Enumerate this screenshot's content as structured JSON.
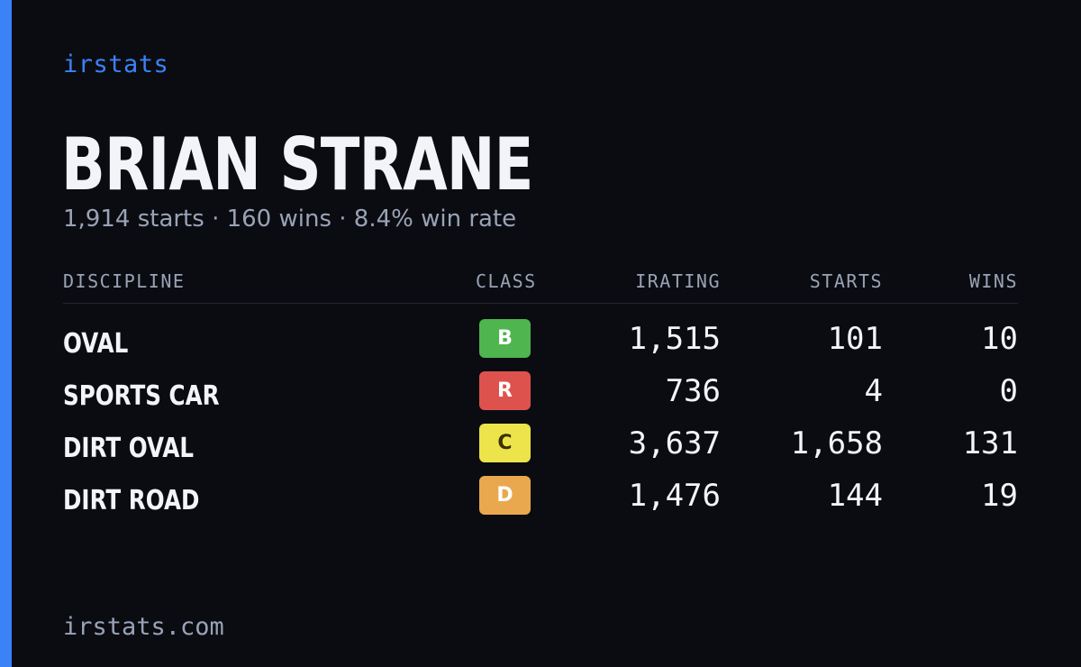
{
  "brand": "irstats",
  "player": {
    "name": "BRIAN STRANE",
    "summary": "1,914 starts · 160 wins · 8.4% win rate"
  },
  "table": {
    "headers": {
      "discipline": "DISCIPLINE",
      "class": "CLASS",
      "irating": "IRATING",
      "starts": "STARTS",
      "wins": "WINS"
    },
    "rows": [
      {
        "discipline": "OVAL",
        "class": "B",
        "class_color": "#4fb54f",
        "class_text_color": "#ffffff",
        "irating": "1,515",
        "starts": "101",
        "wins": "10"
      },
      {
        "discipline": "SPORTS CAR",
        "class": "R",
        "class_color": "#de524e",
        "class_text_color": "#ffffff",
        "irating": "736",
        "starts": "4",
        "wins": "0"
      },
      {
        "discipline": "DIRT OVAL",
        "class": "C",
        "class_color": "#ece44a",
        "class_text_color": "#3a3200",
        "irating": "3,637",
        "starts": "1,658",
        "wins": "131"
      },
      {
        "discipline": "DIRT ROAD",
        "class": "D",
        "class_color": "#eaa84e",
        "class_text_color": "#ffffff",
        "irating": "1,476",
        "starts": "144",
        "wins": "19"
      }
    ]
  },
  "footer": "irstats.com",
  "colors": {
    "background": "#0a0c12",
    "accent": "#3b82f6",
    "text_primary": "#f3f4f8",
    "text_secondary": "#9aa3b5"
  }
}
